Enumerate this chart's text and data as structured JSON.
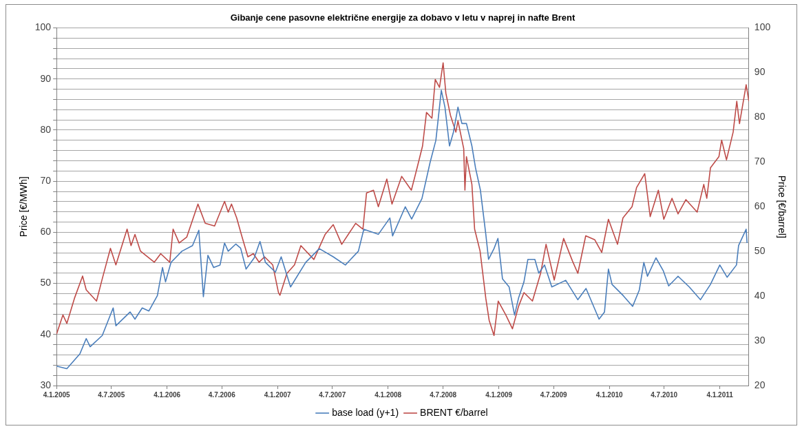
{
  "chart_data": {
    "type": "line",
    "title": "Gibanje cene pasovne električne energije za dobavo v letu v naprej in nafte Brent",
    "ylabel": "Price [€/MWh]",
    "y2label": "Price [€/barrel]",
    "xlim": [
      "2005-01-04",
      "2011-04-10"
    ],
    "xticks": [
      {
        "value": "2005-01-04",
        "label": "4.1.2005"
      },
      {
        "value": "2005-07-04",
        "label": "4.7.2005"
      },
      {
        "value": "2006-01-04",
        "label": "4.1.2006"
      },
      {
        "value": "2006-07-04",
        "label": "4.7.2006"
      },
      {
        "value": "2007-01-04",
        "label": "4.1.2007"
      },
      {
        "value": "2007-07-04",
        "label": "4.7.2007"
      },
      {
        "value": "2008-01-04",
        "label": "4.1.2008"
      },
      {
        "value": "2008-07-04",
        "label": "4.7.2008"
      },
      {
        "value": "2009-01-04",
        "label": "4.1.2009"
      },
      {
        "value": "2009-07-04",
        "label": "4.7.2009"
      },
      {
        "value": "2010-01-04",
        "label": "4.1.2010"
      },
      {
        "value": "2010-07-04",
        "label": "4.7.2010"
      },
      {
        "value": "2011-01-04",
        "label": "4.1.2011"
      }
    ],
    "ylim": [
      30,
      100
    ],
    "yticks": [
      30,
      {
        "value": 32,
        "label": null
      },
      {
        "value": 34,
        "label": null
      },
      {
        "value": 36,
        "label": null
      },
      {
        "value": 38,
        "label": null
      },
      40,
      {
        "value": 42,
        "label": null
      },
      {
        "value": 44,
        "label": null
      },
      {
        "value": 46,
        "label": null
      },
      {
        "value": 48,
        "label": null
      },
      50,
      {
        "value": 52,
        "label": null
      },
      {
        "value": 54,
        "label": null
      },
      {
        "value": 56,
        "label": null
      },
      {
        "value": 58,
        "label": null
      },
      60,
      {
        "value": 62,
        "label": null
      },
      {
        "value": 64,
        "label": null
      },
      {
        "value": 66,
        "label": null
      },
      {
        "value": 68,
        "label": null
      },
      70,
      {
        "value": 72,
        "label": null
      },
      {
        "value": 74,
        "label": null
      },
      {
        "value": 76,
        "label": null
      },
      {
        "value": 78,
        "label": null
      },
      80,
      {
        "value": 82,
        "label": null
      },
      {
        "value": 84,
        "label": null
      },
      {
        "value": 86,
        "label": null
      },
      {
        "value": 88,
        "label": null
      },
      90,
      {
        "value": 92,
        "label": null
      },
      {
        "value": 94,
        "label": null
      },
      {
        "value": 96,
        "label": null
      },
      {
        "value": 98,
        "label": null
      },
      100
    ],
    "y2lim": [
      20,
      100
    ],
    "y2ticks": [
      20,
      30,
      40,
      50,
      60,
      70,
      80,
      90,
      100
    ],
    "grid": "y",
    "legend": "bottom",
    "marker": "none",
    "line_style": "solid",
    "series": [
      {
        "name": "base load (y+1)",
        "color": "#4a7ebb",
        "x": [
          "2005-01-04",
          "2005-02-07",
          "2005-03-22",
          "2005-04-12",
          "2005-04-25",
          "2005-06-04",
          "2005-07-10",
          "2005-07-19",
          "2005-09-04",
          "2005-09-20",
          "2005-10-14",
          "2005-11-05",
          "2005-12-03",
          "2005-12-20",
          "2005-12-30",
          "2006-01-17",
          "2006-02-22",
          "2006-03-29",
          "2006-04-19",
          "2006-05-04",
          "2006-05-19",
          "2006-06-07",
          "2006-06-28",
          "2006-07-13",
          "2006-07-25",
          "2006-08-19",
          "2006-09-04",
          "2006-09-22",
          "2006-10-19",
          "2006-11-07",
          "2006-11-25",
          "2006-12-28",
          "2007-01-16",
          "2007-02-16",
          "2007-04-07",
          "2007-05-22",
          "2007-07-07",
          "2007-08-16",
          "2007-09-28",
          "2007-10-16",
          "2007-12-03",
          "2008-01-10",
          "2008-01-19",
          "2008-03-01",
          "2008-03-22",
          "2008-04-25",
          "2008-05-22",
          "2008-06-10",
          "2008-06-28",
          "2008-07-10",
          "2008-07-25",
          "2008-08-07",
          "2008-08-22",
          "2008-09-04",
          "2008-09-19",
          "2008-10-07",
          "2008-10-19",
          "2008-11-04",
          "2008-11-22",
          "2008-12-01",
          "2008-12-19",
          "2009-01-01",
          "2009-01-16",
          "2009-02-07",
          "2009-02-25",
          "2009-03-10",
          "2009-03-28",
          "2009-04-10",
          "2009-05-03",
          "2009-05-16",
          "2009-06-04",
          "2009-06-28",
          "2009-08-13",
          "2009-09-22",
          "2009-10-19",
          "2009-12-01",
          "2009-12-19",
          "2010-01-01",
          "2010-01-13",
          "2010-02-19",
          "2010-03-22",
          "2010-04-13",
          "2010-04-28",
          "2010-05-10",
          "2010-06-07",
          "2010-07-01",
          "2010-07-19",
          "2010-08-19",
          "2010-09-25",
          "2010-11-01",
          "2010-12-04",
          "2011-01-04",
          "2011-01-28",
          "2011-02-28",
          "2011-03-07",
          "2011-04-01",
          "2011-04-04"
        ],
        "values": [
          33.8,
          33.3,
          36.2,
          39.2,
          37.6,
          39.8,
          45.2,
          41.7,
          44.4,
          43.0,
          45.2,
          44.6,
          47.6,
          53.1,
          50.3,
          54.1,
          56.3,
          57.4,
          60.4,
          47.4,
          55.5,
          53.1,
          53.6,
          57.9,
          56.3,
          57.7,
          56.9,
          52.8,
          55.0,
          58.2,
          54.1,
          52.2,
          55.2,
          49.3,
          54.1,
          56.8,
          55.2,
          53.6,
          56.3,
          60.6,
          59.6,
          62.8,
          59.3,
          65.0,
          62.6,
          66.6,
          73.7,
          78.0,
          87.8,
          84.5,
          76.9,
          79.6,
          84.5,
          81.3,
          81.3,
          76.9,
          72.6,
          68.3,
          59.6,
          54.7,
          56.8,
          58.8,
          50.9,
          49.3,
          43.8,
          47.1,
          50.3,
          54.7,
          54.7,
          52.0,
          53.6,
          49.3,
          50.6,
          46.8,
          49.0,
          43.0,
          44.4,
          52.8,
          49.8,
          47.6,
          45.5,
          48.7,
          54.1,
          51.4,
          55.0,
          52.5,
          49.5,
          51.4,
          49.3,
          46.8,
          49.8,
          53.6,
          51.2,
          53.6,
          57.4,
          60.6,
          57.9
        ]
      },
      {
        "name": "BRENT €/barrel",
        "color": "#be4b48",
        "axis": "y2",
        "x": [
          "2005-01-04",
          "2005-01-25",
          "2005-02-07",
          "2005-03-04",
          "2005-03-31",
          "2005-04-12",
          "2005-05-16",
          "2005-06-04",
          "2005-07-01",
          "2005-07-19",
          "2005-08-25",
          "2005-09-07",
          "2005-09-20",
          "2005-10-08",
          "2005-11-23",
          "2005-12-14",
          "2006-01-13",
          "2006-01-24",
          "2006-02-13",
          "2006-03-10",
          "2006-04-16",
          "2006-05-10",
          "2006-06-10",
          "2006-07-13",
          "2006-07-25",
          "2006-08-05",
          "2006-08-22",
          "2006-09-09",
          "2006-09-28",
          "2006-10-16",
          "2006-11-04",
          "2006-11-22",
          "2006-12-19",
          "2007-01-07",
          "2007-01-12",
          "2007-02-04",
          "2007-03-01",
          "2007-03-22",
          "2007-05-04",
          "2007-06-10",
          "2007-07-07",
          "2007-08-04",
          "2007-09-19",
          "2007-10-13",
          "2007-10-25",
          "2007-11-17",
          "2007-12-03",
          "2007-12-31",
          "2008-01-17",
          "2008-02-18",
          "2008-03-21",
          "2008-04-09",
          "2008-04-27",
          "2008-05-10",
          "2008-05-28",
          "2008-06-08",
          "2008-06-22",
          "2008-07-04",
          "2008-07-13",
          "2008-07-28",
          "2008-08-15",
          "2008-08-22",
          "2008-09-10",
          "2008-09-14",
          "2008-09-19",
          "2008-10-07",
          "2008-10-16",
          "2008-11-03",
          "2008-11-22",
          "2008-12-03",
          "2008-12-19",
          "2009-01-02",
          "2009-01-27",
          "2009-02-18",
          "2009-03-10",
          "2009-03-28",
          "2009-04-25",
          "2009-05-22",
          "2009-06-09",
          "2009-07-06",
          "2009-08-06",
          "2009-09-04",
          "2009-09-22",
          "2009-10-18",
          "2009-11-17",
          "2009-12-10",
          "2010-01-01",
          "2010-01-31",
          "2010-02-18",
          "2010-03-20",
          "2010-04-04",
          "2010-05-01",
          "2010-05-19",
          "2010-06-15",
          "2010-07-03",
          "2010-07-30",
          "2010-08-19",
          "2010-09-14",
          "2010-10-21",
          "2010-11-12",
          "2010-11-22",
          "2010-12-04",
          "2011-01-01",
          "2011-01-10",
          "2011-01-26",
          "2011-02-17",
          "2011-03-01",
          "2011-03-10",
          "2011-04-01",
          "2011-04-10"
        ],
        "values": [
          31.5,
          35.8,
          33.9,
          39.5,
          44.5,
          41.4,
          38.9,
          43.9,
          50.7,
          47.0,
          55.0,
          51.3,
          53.8,
          50.1,
          47.6,
          49.5,
          47.6,
          55.0,
          51.9,
          53.2,
          60.6,
          56.3,
          55.7,
          61.2,
          58.8,
          60.6,
          57.5,
          53.2,
          48.8,
          49.5,
          47.6,
          48.8,
          47.0,
          40.8,
          40.2,
          45.1,
          47.0,
          51.3,
          48.2,
          53.8,
          56.0,
          51.6,
          56.3,
          55.0,
          63.1,
          63.7,
          60.0,
          66.2,
          60.6,
          66.8,
          63.7,
          68.7,
          73.6,
          81.1,
          79.8,
          88.5,
          86.7,
          92.2,
          85.4,
          80.5,
          76.7,
          79.2,
          73.0,
          63.7,
          71.2,
          65.0,
          55.0,
          50.1,
          39.5,
          34.6,
          31.2,
          38.9,
          35.8,
          32.7,
          37.7,
          40.8,
          38.9,
          45.1,
          51.6,
          43.6,
          52.9,
          47.9,
          45.1,
          53.5,
          52.6,
          49.8,
          57.2,
          51.6,
          57.5,
          60.0,
          64.3,
          67.4,
          57.8,
          63.7,
          57.2,
          61.9,
          58.4,
          61.6,
          58.8,
          65.0,
          61.9,
          68.7,
          71.2,
          74.9,
          70.5,
          76.7,
          83.6,
          78.6,
          87.3,
          83.6
        ]
      }
    ]
  }
}
